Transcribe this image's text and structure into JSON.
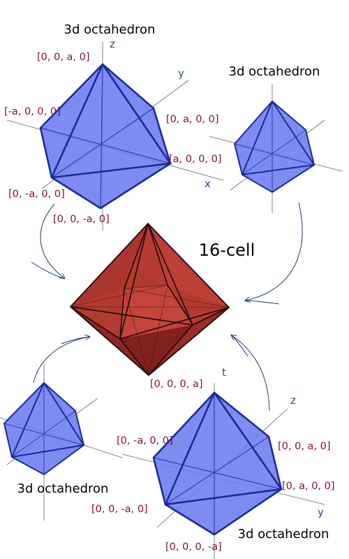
{
  "colors": {
    "octahedron_fill": "#7080f0",
    "octahedron_edge": "#2030a0",
    "cell_fill": "#b33a30",
    "coord_label": "#7a1030",
    "axis_label": "#1f4fa0",
    "arrow": "#1f3a70"
  },
  "title": "16-cell",
  "octahedra": [
    {
      "caption": "3d octahedron",
      "axes": [
        "z",
        "y",
        "x"
      ],
      "vertices": [
        "[0, 0, a, 0]",
        "[-a, 0, 0, 0]",
        "[0, a, 0, 0]",
        "[a, 0, 0, 0]",
        "[0, -a, 0, 0]",
        "[0, 0, -a, 0]"
      ]
    },
    {
      "caption": "3d octahedron"
    },
    {
      "caption": "3d octahedron"
    },
    {
      "caption": "3d octahedron",
      "axes": [
        "t",
        "z",
        "y"
      ],
      "vertices": [
        "[0, 0, 0, a]",
        "[0, -a, 0, 0]",
        "[0, 0, a, 0]",
        "[0, a, 0, 0]",
        "[0, 0, -a, 0]",
        "[0, 0, 0, -a]"
      ]
    }
  ]
}
